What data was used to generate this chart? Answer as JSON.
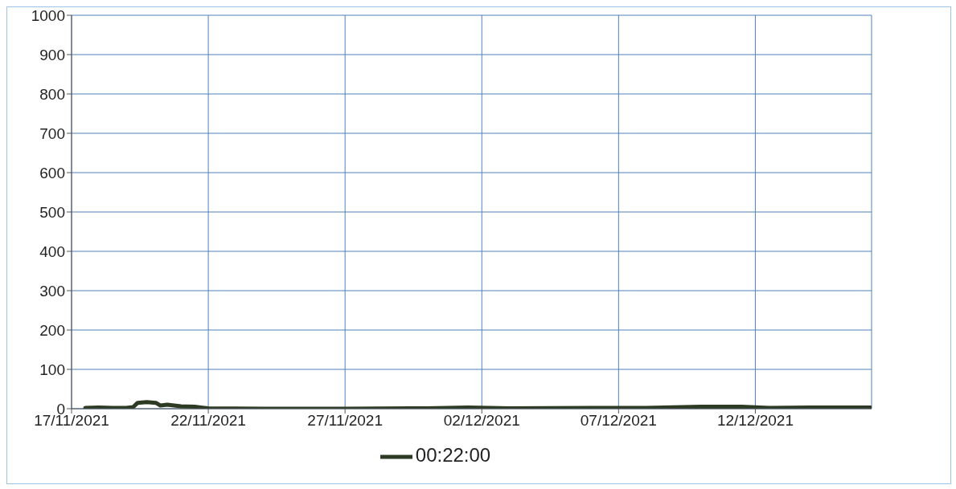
{
  "chart_data": {
    "type": "line",
    "xlim": [
      "2021-11-17",
      "2021-12-16T06:00"
    ],
    "xticks": [
      {
        "value": "2021-11-17",
        "label": "17/11/2021"
      },
      {
        "value": "2021-11-22",
        "label": "22/11/2021"
      },
      {
        "value": "2021-11-27",
        "label": "27/11/2021"
      },
      {
        "value": "2021-12-02",
        "label": "02/12/2021"
      },
      {
        "value": "2021-12-07",
        "label": "07/12/2021"
      },
      {
        "value": "2021-12-12",
        "label": "12/12/2021"
      }
    ],
    "ylim": [
      0,
      1000
    ],
    "yticks": [
      0,
      100,
      200,
      300,
      400,
      500,
      600,
      700,
      800,
      900,
      1000
    ],
    "x": [
      "2021-11-17T12:00",
      "2021-11-18T00:00",
      "2021-11-18T12:00",
      "2021-11-19T00:00",
      "2021-11-19T06:00",
      "2021-11-19T10:00",
      "2021-11-19T18:00",
      "2021-11-20T02:00",
      "2021-11-20T06:00",
      "2021-11-20T12:00",
      "2021-11-21T00:00",
      "2021-11-21T12:00",
      "2021-11-22T00:00",
      "2021-11-24T00:00",
      "2021-11-27T00:00",
      "2021-11-30T00:00",
      "2021-12-01T12:00",
      "2021-12-03T00:00",
      "2021-12-06T00:00",
      "2021-12-08T00:00",
      "2021-12-10T00:00",
      "2021-12-11T12:00",
      "2021-12-12T12:00",
      "2021-12-14T00:00",
      "2021-12-16T05:00"
    ],
    "series": [
      {
        "name": "00:22:00",
        "color": "#2e3b24",
        "values": [
          2,
          3,
          2,
          2,
          4,
          15,
          17,
          15,
          8,
          10,
          6,
          5,
          1,
          0,
          0,
          1,
          3,
          1,
          2,
          2,
          5,
          5,
          2,
          3,
          3
        ]
      }
    ],
    "grid": true,
    "legend": "bottom",
    "marker": "none",
    "line_style": "solid"
  }
}
